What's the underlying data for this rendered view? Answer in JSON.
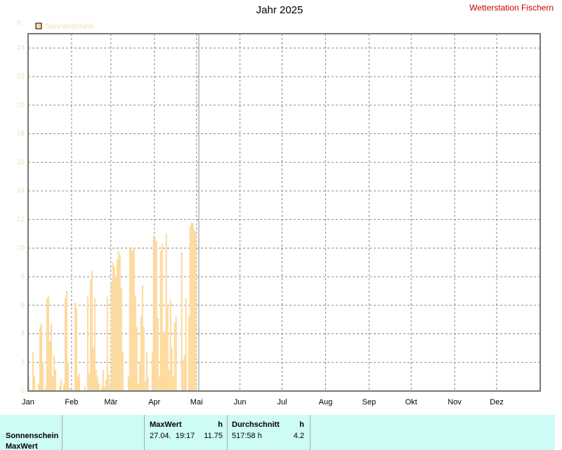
{
  "chart_data": {
    "type": "bar",
    "title": "Jahr 2025",
    "station": "Wetterstation Fischern",
    "y_label": "h",
    "series": [
      {
        "name": "Sonnenschein",
        "color": "#fdd99b",
        "x": [
          0,
          1,
          2,
          3,
          4,
          5,
          6,
          7,
          8,
          9,
          10,
          11,
          12,
          13,
          14,
          15,
          16,
          17,
          18,
          19,
          20,
          21,
          22,
          23,
          24,
          25,
          26,
          27,
          28,
          29,
          30,
          31,
          32,
          33,
          34,
          35,
          36,
          37,
          38,
          39,
          40,
          41,
          42,
          43,
          44,
          45,
          46,
          47,
          48,
          49,
          50,
          51,
          52,
          53,
          54,
          55,
          56,
          57,
          58,
          59,
          60,
          61,
          62,
          63,
          64,
          65,
          66,
          67,
          68,
          69,
          70,
          71,
          72,
          73,
          74,
          75,
          76,
          77,
          78,
          79,
          80,
          81,
          82,
          83,
          84,
          85,
          86,
          87,
          88,
          89,
          90,
          91,
          92,
          93,
          94,
          95,
          96,
          97,
          98,
          99,
          100,
          101,
          102,
          103,
          104,
          105,
          106,
          107,
          108,
          109,
          110,
          111,
          112,
          113,
          114,
          115,
          116,
          117,
          118,
          119
        ],
        "values": [
          1,
          0,
          0,
          2.7,
          1,
          0,
          0,
          0.5,
          4.5,
          4.7,
          2,
          0,
          0.3,
          6.5,
          6.6,
          3.5,
          4.7,
          1,
          2.5,
          1.5,
          0,
          0,
          0.3,
          0.8,
          0,
          0.5,
          6.5,
          7,
          2,
          0.2,
          0.1,
          0,
          0,
          6.2,
          5.8,
          1,
          1.2,
          0,
          0,
          0,
          0.3,
          0,
          6.6,
          1.2,
          7.8,
          8.4,
          3,
          6.5,
          1.5,
          1,
          0.5,
          0,
          0.3,
          1.5,
          0.3,
          0.8,
          6.6,
          1.2,
          0.4,
          7.6,
          9,
          8.7,
          8,
          9.2,
          9.8,
          9.5,
          7.2,
          2.7,
          0,
          0,
          0,
          1,
          9.9,
          10,
          9.8,
          10,
          6.7,
          4.5,
          0.5,
          2,
          5.2,
          7.4,
          4.5,
          0.7,
          2.7,
          1,
          0,
          0,
          2.7,
          10.8,
          10.7,
          10.5,
          5.1,
          1,
          9.8,
          10.3,
          4,
          4.2,
          11,
          6,
          1.5,
          6.4,
          3,
          1,
          4.8,
          5.2,
          0,
          0,
          0,
          9.7,
          2.2,
          2.5,
          6.5,
          0,
          5.2,
          11.5,
          11.8,
          11.75,
          11.3,
          11
        ]
      }
    ],
    "xlim": [
      0,
      365
    ],
    "xticks": [
      {
        "value": 0,
        "label": "Jan"
      },
      {
        "value": 31,
        "label": "Feb"
      },
      {
        "value": 59,
        "label": "Mär"
      },
      {
        "value": 90,
        "label": "Apr"
      },
      {
        "value": 120,
        "label": "Mai"
      },
      {
        "value": 151,
        "label": "Jun"
      },
      {
        "value": 181,
        "label": "Jul"
      },
      {
        "value": 212,
        "label": "Aug"
      },
      {
        "value": 243,
        "label": "Sep"
      },
      {
        "value": 273,
        "label": "Okt"
      },
      {
        "value": 304,
        "label": "Nov"
      },
      {
        "value": 334,
        "label": "Dez"
      }
    ],
    "ylim": [
      0,
      25
    ],
    "yticks": [
      0,
      2,
      4,
      6,
      8,
      10,
      12,
      14,
      16,
      18,
      20,
      22,
      24
    ],
    "grid": true
  },
  "table": {
    "row_labels": [
      "Sonnenschein",
      "MaxWert"
    ],
    "max": {
      "header": "MaxWert",
      "unit": "h",
      "date": "27.04.  19:17",
      "value": "11.75"
    },
    "avg": {
      "header": "Durchschnitt",
      "unit": "h",
      "total": "517:58 h",
      "value": "4.2"
    }
  }
}
